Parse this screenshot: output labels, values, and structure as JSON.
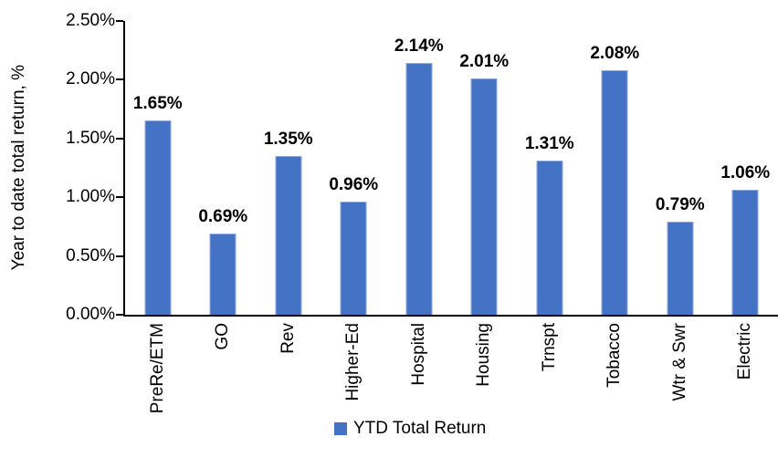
{
  "chart_data": {
    "type": "bar",
    "title": "",
    "xlabel": "",
    "ylabel": "Year to date total return, %",
    "categories": [
      "PreRe/ETM",
      "GO",
      "Rev",
      "Higher-Ed",
      "Hospital",
      "Housing",
      "Trnspt",
      "Tobacco",
      "Wtr & Swr",
      "Electric"
    ],
    "values": [
      1.65,
      0.69,
      1.35,
      0.96,
      2.14,
      2.01,
      1.31,
      2.08,
      0.79,
      1.06
    ],
    "value_labels": [
      "1.65%",
      "0.69%",
      "1.35%",
      "0.96%",
      "2.14%",
      "2.01%",
      "1.31%",
      "2.08%",
      "0.79%",
      "1.06%"
    ],
    "yticks": [
      "0.00%",
      "0.50%",
      "1.00%",
      "1.50%",
      "2.00%",
      "2.50%"
    ],
    "ylim": [
      0,
      2.5
    ],
    "grid": false,
    "legend": {
      "label": "YTD Total Return",
      "position": "bottom-center"
    },
    "colors": {
      "bar_fill": "#4472C4",
      "bar_border": "#8FAADC",
      "axis": "#000000",
      "text": "#000000"
    }
  }
}
